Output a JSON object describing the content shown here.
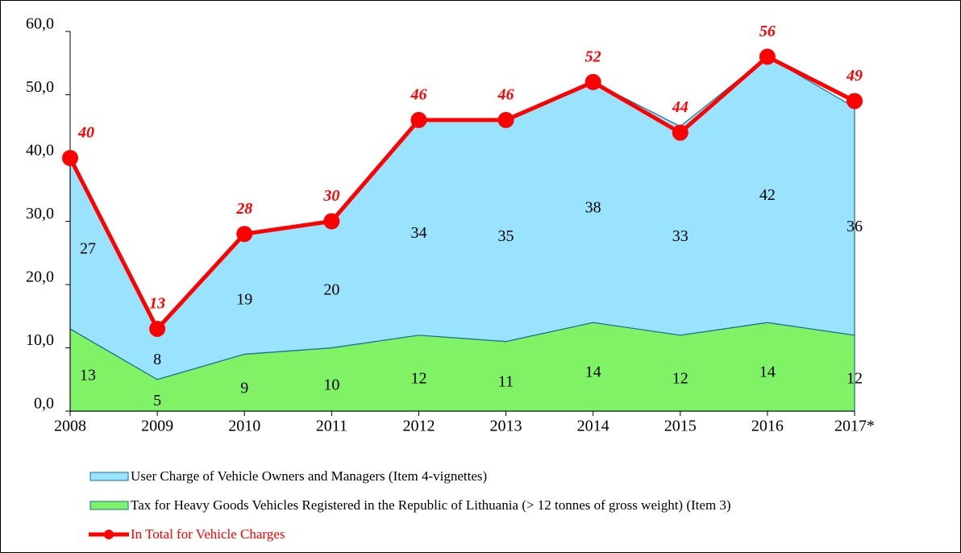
{
  "chart_data": {
    "type": "area",
    "categories": [
      "2008",
      "2009",
      "2010",
      "2011",
      "2012",
      "2013",
      "2014",
      "2015",
      "2016",
      "2017*"
    ],
    "series": [
      {
        "name": "Tax for Heavy Goods Vehicles Registered in the Republic of Lithuania (> 12 tonnes of gross weight) (Item 3)",
        "color": "#7ff266",
        "values": [
          13,
          5,
          9,
          10,
          12,
          11,
          14,
          12,
          14,
          12
        ]
      },
      {
        "name": "User Charge of Vehicle Owners and Managers (Item 4-vignettes)",
        "color": "#99e3ff",
        "values": [
          27,
          8,
          19,
          20,
          34,
          35,
          38,
          33,
          42,
          36
        ]
      },
      {
        "name": "In Total for Vehicle Charges",
        "color": "#ff0000",
        "type": "line",
        "values": [
          40,
          13,
          28,
          30,
          46,
          46,
          52,
          44,
          56,
          49
        ]
      }
    ],
    "ylim": [
      0,
      60
    ],
    "yticks": [
      {
        "value": 0,
        "label": "0,0"
      },
      {
        "value": 10,
        "label": "10,0"
      },
      {
        "value": 20,
        "label": "20,0"
      },
      {
        "value": 30,
        "label": "30,0"
      },
      {
        "value": 40,
        "label": "40,0"
      },
      {
        "value": 50,
        "label": "50,0"
      },
      {
        "value": 60,
        "label": "60,0"
      }
    ]
  }
}
